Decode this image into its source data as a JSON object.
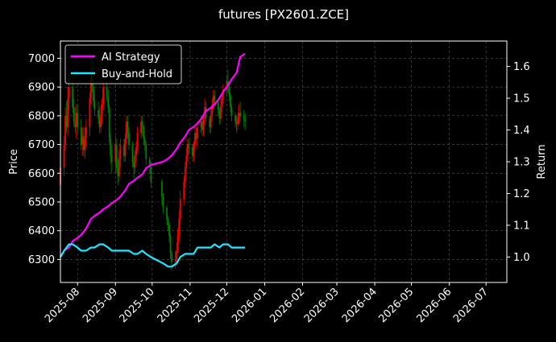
{
  "chart_data": {
    "type": "line",
    "title": "futures [PX2601.ZCE]",
    "xlabel": "",
    "ylabel_left": "Price",
    "ylabel_right": "Return",
    "x_range": [
      "2025-07-18",
      "2026-07-18"
    ],
    "ylim_left": [
      6220,
      7060
    ],
    "ylim_right": [
      0.92,
      1.68
    ],
    "x_ticks": [
      "2025-08",
      "2025-09",
      "2025-10",
      "2025-11",
      "2025-12",
      "2026-01",
      "2026-02",
      "2026-03",
      "2026-04",
      "2026-05",
      "2026-06",
      "2026-07"
    ],
    "y_ticks_left": [
      6300,
      6400,
      6500,
      6600,
      6700,
      6800,
      6900,
      7000
    ],
    "y_ticks_right": [
      "1.0",
      "1.1",
      "1.2",
      "1.3",
      "1.4",
      "1.5",
      "1.6"
    ],
    "grid": true,
    "legend_position": "top-left",
    "candles": {
      "up_color": "#ff0000",
      "down_color": "#008000",
      "dates": [
        "2025-07-18",
        "2025-07-21",
        "2025-07-22",
        "2025-07-23",
        "2025-07-24",
        "2025-07-25",
        "2025-07-28",
        "2025-07-29",
        "2025-07-30",
        "2025-07-31",
        "2025-08-01",
        "2025-08-04",
        "2025-08-05",
        "2025-08-06",
        "2025-08-07",
        "2025-08-08",
        "2025-08-11",
        "2025-08-12",
        "2025-08-13",
        "2025-08-14",
        "2025-08-15",
        "2025-08-18",
        "2025-08-19",
        "2025-08-20",
        "2025-08-21",
        "2025-08-22",
        "2025-08-25",
        "2025-08-26",
        "2025-08-27",
        "2025-08-28",
        "2025-08-29",
        "2025-09-01",
        "2025-09-02",
        "2025-09-03",
        "2025-09-04",
        "2025-09-05",
        "2025-09-08",
        "2025-09-09",
        "2025-09-10",
        "2025-09-11",
        "2025-09-12",
        "2025-09-15",
        "2025-09-16",
        "2025-09-17",
        "2025-09-18",
        "2025-09-19",
        "2025-09-22",
        "2025-09-23",
        "2025-09-24",
        "2025-09-25",
        "2025-09-26",
        "2025-09-29",
        "2025-09-30",
        "2025-10-09",
        "2025-10-10",
        "2025-10-13",
        "2025-10-14",
        "2025-10-15",
        "2025-10-16",
        "2025-10-17",
        "2025-10-20",
        "2025-10-21",
        "2025-10-22",
        "2025-10-23",
        "2025-10-24",
        "2025-10-27",
        "2025-10-28",
        "2025-10-29",
        "2025-10-30",
        "2025-10-31",
        "2025-11-03",
        "2025-11-04",
        "2025-11-05",
        "2025-11-06",
        "2025-11-07",
        "2025-11-10",
        "2025-11-11",
        "2025-11-12",
        "2025-11-13",
        "2025-11-14",
        "2025-11-17",
        "2025-11-18",
        "2025-11-19",
        "2025-11-20",
        "2025-11-21",
        "2025-11-24",
        "2025-11-25",
        "2025-11-26",
        "2025-11-27",
        "2025-11-28",
        "2025-12-01",
        "2025-12-02",
        "2025-12-03",
        "2025-12-04",
        "2025-12-05",
        "2025-12-08",
        "2025-12-09",
        "2025-12-10",
        "2025-12-11",
        "2025-12-12",
        "2025-12-15",
        "2025-12-16"
      ],
      "open": [
        6560,
        6620,
        6700,
        6800,
        6760,
        6860,
        6900,
        6830,
        6780,
        6760,
        6810,
        6760,
        6700,
        6730,
        6680,
        6720,
        6760,
        6860,
        6950,
        6900,
        6850,
        6820,
        6790,
        6760,
        6800,
        6840,
        6900,
        6870,
        6830,
        6720,
        6660,
        6640,
        6700,
        6620,
        6590,
        6650,
        6700,
        6660,
        6720,
        6780,
        6740,
        6700,
        6640,
        6620,
        6660,
        6690,
        6740,
        6780,
        6760,
        6720,
        6700,
        6650,
        6620,
        6570,
        6520,
        6480,
        6440,
        6420,
        6380,
        6320,
        6290,
        6300,
        6330,
        6380,
        6440,
        6510,
        6570,
        6620,
        6660,
        6700,
        6690,
        6660,
        6700,
        6740,
        6720,
        6760,
        6780,
        6750,
        6800,
        6830,
        6790,
        6760,
        6800,
        6840,
        6870,
        6850,
        6820,
        6790,
        6830,
        6860,
        6890,
        6920,
        6900,
        6870,
        6830,
        6800,
        6780,
        6770,
        6790,
        6810,
        6800,
        6790
      ],
      "high": [
        6640,
        6730,
        6830,
        6850,
        6900,
        6950,
        6940,
        6860,
        6830,
        6840,
        6840,
        6790,
        6760,
        6760,
        6760,
        6790,
        6880,
        6970,
        6990,
        6930,
        6880,
        6850,
        6830,
        6840,
        6860,
        6920,
        6930,
        6890,
        6840,
        6740,
        6700,
        6730,
        6720,
        6650,
        6680,
        6720,
        6720,
        6740,
        6800,
        6800,
        6760,
        6710,
        6660,
        6680,
        6710,
        6760,
        6800,
        6800,
        6770,
        6730,
        6710,
        6660,
        6640,
        6580,
        6530,
        6490,
        6450,
        6430,
        6390,
        6330,
        6330,
        6360,
        6410,
        6470,
        6540,
        6590,
        6640,
        6690,
        6720,
        6720,
        6700,
        6710,
        6760,
        6760,
        6780,
        6800,
        6800,
        6810,
        6860,
        6850,
        6800,
        6820,
        6860,
        6890,
        6890,
        6860,
        6830,
        6850,
        6880,
        6910,
        6940,
        6960,
        6910,
        6880,
        6840,
        6810,
        6800,
        6810,
        6840,
        6850,
        6820,
        6810
      ],
      "low": [
        6500,
        6590,
        6680,
        6740,
        6730,
        6820,
        6810,
        6760,
        6740,
        6720,
        6740,
        6680,
        6660,
        6660,
        6650,
        6690,
        6730,
        6840,
        6880,
        6830,
        6800,
        6770,
        6740,
        6740,
        6770,
        6820,
        6850,
        6810,
        6700,
        6630,
        6600,
        6600,
        6600,
        6560,
        6570,
        6620,
        6640,
        6640,
        6700,
        6720,
        6680,
        6620,
        6580,
        6600,
        6640,
        6670,
        6720,
        6730,
        6700,
        6680,
        6630,
        6600,
        6550,
        6490,
        6460,
        6420,
        6400,
        6360,
        6300,
        6260,
        6270,
        6280,
        6320,
        6360,
        6420,
        6490,
        6550,
        6600,
        6640,
        6670,
        6640,
        6640,
        6680,
        6700,
        6690,
        6740,
        6730,
        6730,
        6770,
        6780,
        6740,
        6740,
        6780,
        6820,
        6830,
        6800,
        6770,
        6770,
        6810,
        6840,
        6870,
        6880,
        6850,
        6810,
        6780,
        6760,
        6740,
        6750,
        6770,
        6780,
        6760,
        6750
      ],
      "close": [
        6620,
        6700,
        6800,
        6760,
        6860,
        6900,
        6830,
        6780,
        6760,
        6810,
        6760,
        6700,
        6730,
        6680,
        6720,
        6760,
        6860,
        6950,
        6900,
        6850,
        6820,
        6790,
        6760,
        6800,
        6840,
        6900,
        6870,
        6830,
        6720,
        6660,
        6640,
        6700,
        6620,
        6590,
        6650,
        6700,
        6660,
        6720,
        6780,
        6740,
        6700,
        6640,
        6620,
        6660,
        6690,
        6740,
        6780,
        6760,
        6720,
        6700,
        6650,
        6620,
        6570,
        6520,
        6480,
        6440,
        6420,
        6380,
        6320,
        6290,
        6300,
        6330,
        6380,
        6440,
        6510,
        6570,
        6620,
        6660,
        6700,
        6690,
        6660,
        6700,
        6740,
        6720,
        6760,
        6780,
        6750,
        6800,
        6830,
        6790,
        6760,
        6800,
        6840,
        6870,
        6850,
        6820,
        6790,
        6830,
        6860,
        6890,
        6920,
        6900,
        6870,
        6830,
        6800,
        6780,
        6770,
        6790,
        6810,
        6800,
        6790,
        6780
      ]
    },
    "series": [
      {
        "name": "AI Strategy",
        "color": "#ff00ff",
        "x": [
          "2025-07-18",
          "2025-07-21",
          "2025-07-25",
          "2025-07-28",
          "2025-08-01",
          "2025-08-04",
          "2025-08-08",
          "2025-08-12",
          "2025-08-15",
          "2025-08-19",
          "2025-08-22",
          "2025-08-26",
          "2025-08-29",
          "2025-09-02",
          "2025-09-05",
          "2025-09-09",
          "2025-09-12",
          "2025-09-16",
          "2025-09-19",
          "2025-09-23",
          "2025-09-26",
          "2025-09-30",
          "2025-10-10",
          "2025-10-14",
          "2025-10-17",
          "2025-10-21",
          "2025-10-24",
          "2025-10-28",
          "2025-10-31",
          "2025-11-04",
          "2025-11-07",
          "2025-11-11",
          "2025-11-14",
          "2025-11-18",
          "2025-11-21",
          "2025-11-25",
          "2025-11-28",
          "2025-12-02",
          "2025-12-05",
          "2025-12-09",
          "2025-12-12",
          "2025-12-16"
        ],
        "y": [
          1.0,
          1.02,
          1.03,
          1.05,
          1.06,
          1.07,
          1.09,
          1.12,
          1.13,
          1.14,
          1.15,
          1.16,
          1.17,
          1.18,
          1.19,
          1.21,
          1.23,
          1.24,
          1.25,
          1.26,
          1.28,
          1.29,
          1.3,
          1.31,
          1.32,
          1.34,
          1.36,
          1.38,
          1.4,
          1.41,
          1.42,
          1.44,
          1.46,
          1.47,
          1.48,
          1.5,
          1.52,
          1.54,
          1.56,
          1.58,
          1.63,
          1.64
        ]
      },
      {
        "name": "Buy-and-Hold",
        "color": "#22e5ff",
        "x": [
          "2025-07-18",
          "2025-07-21",
          "2025-07-25",
          "2025-07-28",
          "2025-08-01",
          "2025-08-04",
          "2025-08-08",
          "2025-08-12",
          "2025-08-15",
          "2025-08-19",
          "2025-08-22",
          "2025-08-26",
          "2025-08-29",
          "2025-09-02",
          "2025-09-05",
          "2025-09-09",
          "2025-09-12",
          "2025-09-16",
          "2025-09-19",
          "2025-09-23",
          "2025-09-26",
          "2025-09-30",
          "2025-10-10",
          "2025-10-14",
          "2025-10-17",
          "2025-10-21",
          "2025-10-24",
          "2025-10-28",
          "2025-10-31",
          "2025-11-04",
          "2025-11-07",
          "2025-11-11",
          "2025-11-14",
          "2025-11-18",
          "2025-11-21",
          "2025-11-25",
          "2025-11-28",
          "2025-12-02",
          "2025-12-05",
          "2025-12-09",
          "2025-12-12",
          "2025-12-16"
        ],
        "y": [
          1.0,
          1.02,
          1.04,
          1.04,
          1.03,
          1.02,
          1.02,
          1.03,
          1.03,
          1.04,
          1.04,
          1.03,
          1.02,
          1.02,
          1.02,
          1.02,
          1.02,
          1.01,
          1.01,
          1.02,
          1.01,
          1.0,
          0.98,
          0.97,
          0.97,
          0.98,
          1.0,
          1.01,
          1.01,
          1.01,
          1.03,
          1.03,
          1.03,
          1.03,
          1.04,
          1.03,
          1.04,
          1.04,
          1.03,
          1.03,
          1.03,
          1.03
        ]
      }
    ]
  }
}
